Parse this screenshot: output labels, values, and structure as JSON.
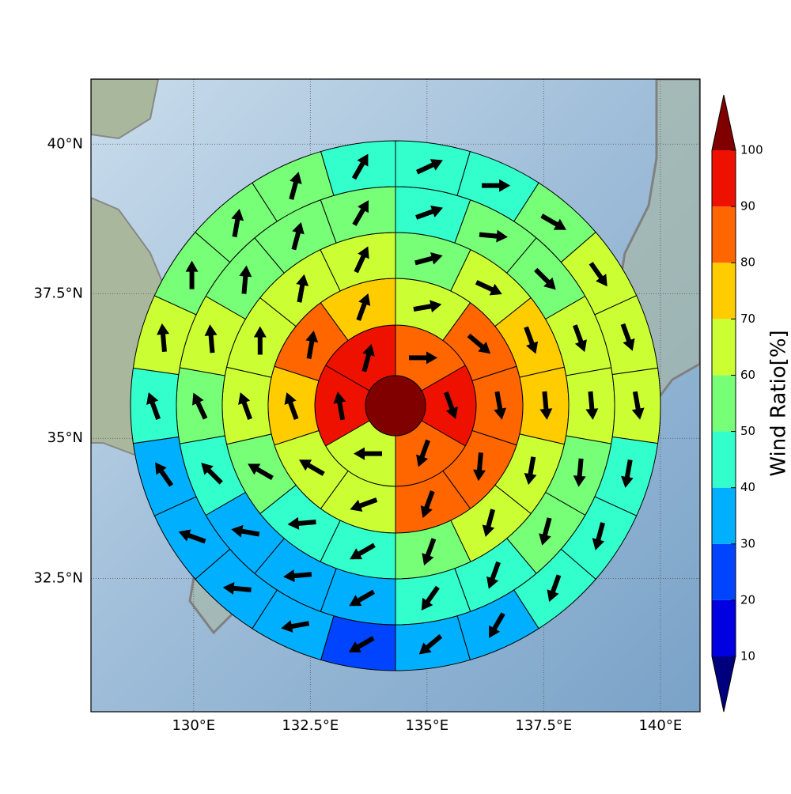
{
  "chart_data": {
    "type": "polar-sector-map",
    "projection": "mercator",
    "grid": true,
    "xlim": [
      127.8,
      140.85
    ],
    "ylim": [
      30.06,
      41.06
    ],
    "xticks": [
      {
        "value": 130,
        "label": "130°E"
      },
      {
        "value": 132.5,
        "label": "132.5°E"
      },
      {
        "value": 135,
        "label": "135°E"
      },
      {
        "value": 137.5,
        "label": "137.5°E"
      },
      {
        "value": 140,
        "label": "140°E"
      }
    ],
    "yticks": [
      {
        "value": 32.5,
        "label": "32.5°N"
      },
      {
        "value": 35,
        "label": "35°N"
      },
      {
        "value": 37.5,
        "label": "37.5°N"
      },
      {
        "value": 40,
        "label": "40°N"
      }
    ],
    "center": {
      "value": 105
    },
    "rings": [
      {
        "values": [
          85,
          95,
          85,
          65,
          95,
          95
        ],
        "directions": [
          90,
          160,
          200,
          270,
          350,
          15
        ]
      },
      {
        "values": [
          65,
          85,
          85,
          85,
          85,
          65,
          65,
          75,
          85,
          75
        ],
        "directions": [
          80,
          130,
          170,
          185,
          200,
          250,
          300,
          340,
          10,
          20
        ]
      },
      {
        "values": [
          55,
          65,
          75,
          75,
          65,
          65,
          55,
          45,
          45,
          55,
          65,
          65,
          65,
          65
        ],
        "directions": [
          75,
          115,
          160,
          175,
          190,
          195,
          200,
          240,
          265,
          300,
          340,
          0,
          10,
          25
        ]
      },
      {
        "values": [
          45,
          55,
          55,
          65,
          65,
          55,
          55,
          45,
          45,
          35,
          35,
          35,
          45,
          55,
          65,
          55,
          55,
          55
        ],
        "directions": [
          70,
          95,
          135,
          160,
          175,
          185,
          195,
          200,
          215,
          240,
          265,
          280,
          315,
          335,
          355,
          5,
          15,
          30
        ]
      },
      {
        "values": [
          45,
          45,
          55,
          65,
          65,
          65,
          45,
          45,
          45,
          35,
          35,
          25,
          35,
          35,
          35,
          35,
          45,
          65,
          55,
          55,
          55,
          45
        ],
        "directions": [
          65,
          90,
          120,
          145,
          160,
          170,
          190,
          195,
          200,
          210,
          230,
          240,
          260,
          275,
          290,
          325,
          340,
          355,
          0,
          10,
          15,
          30
        ]
      }
    ],
    "colorbar": {
      "label": "Wind Ratio[%]",
      "ticks": [
        10,
        20,
        30,
        40,
        50,
        60,
        70,
        80,
        90,
        100
      ],
      "colors": [
        "#00007f",
        "#0000e0",
        "#0044ff",
        "#00b0ff",
        "#33ffcc",
        "#77ff77",
        "#ccff33",
        "#ffcc00",
        "#ff6600",
        "#ee1100",
        "#800000"
      ]
    }
  }
}
